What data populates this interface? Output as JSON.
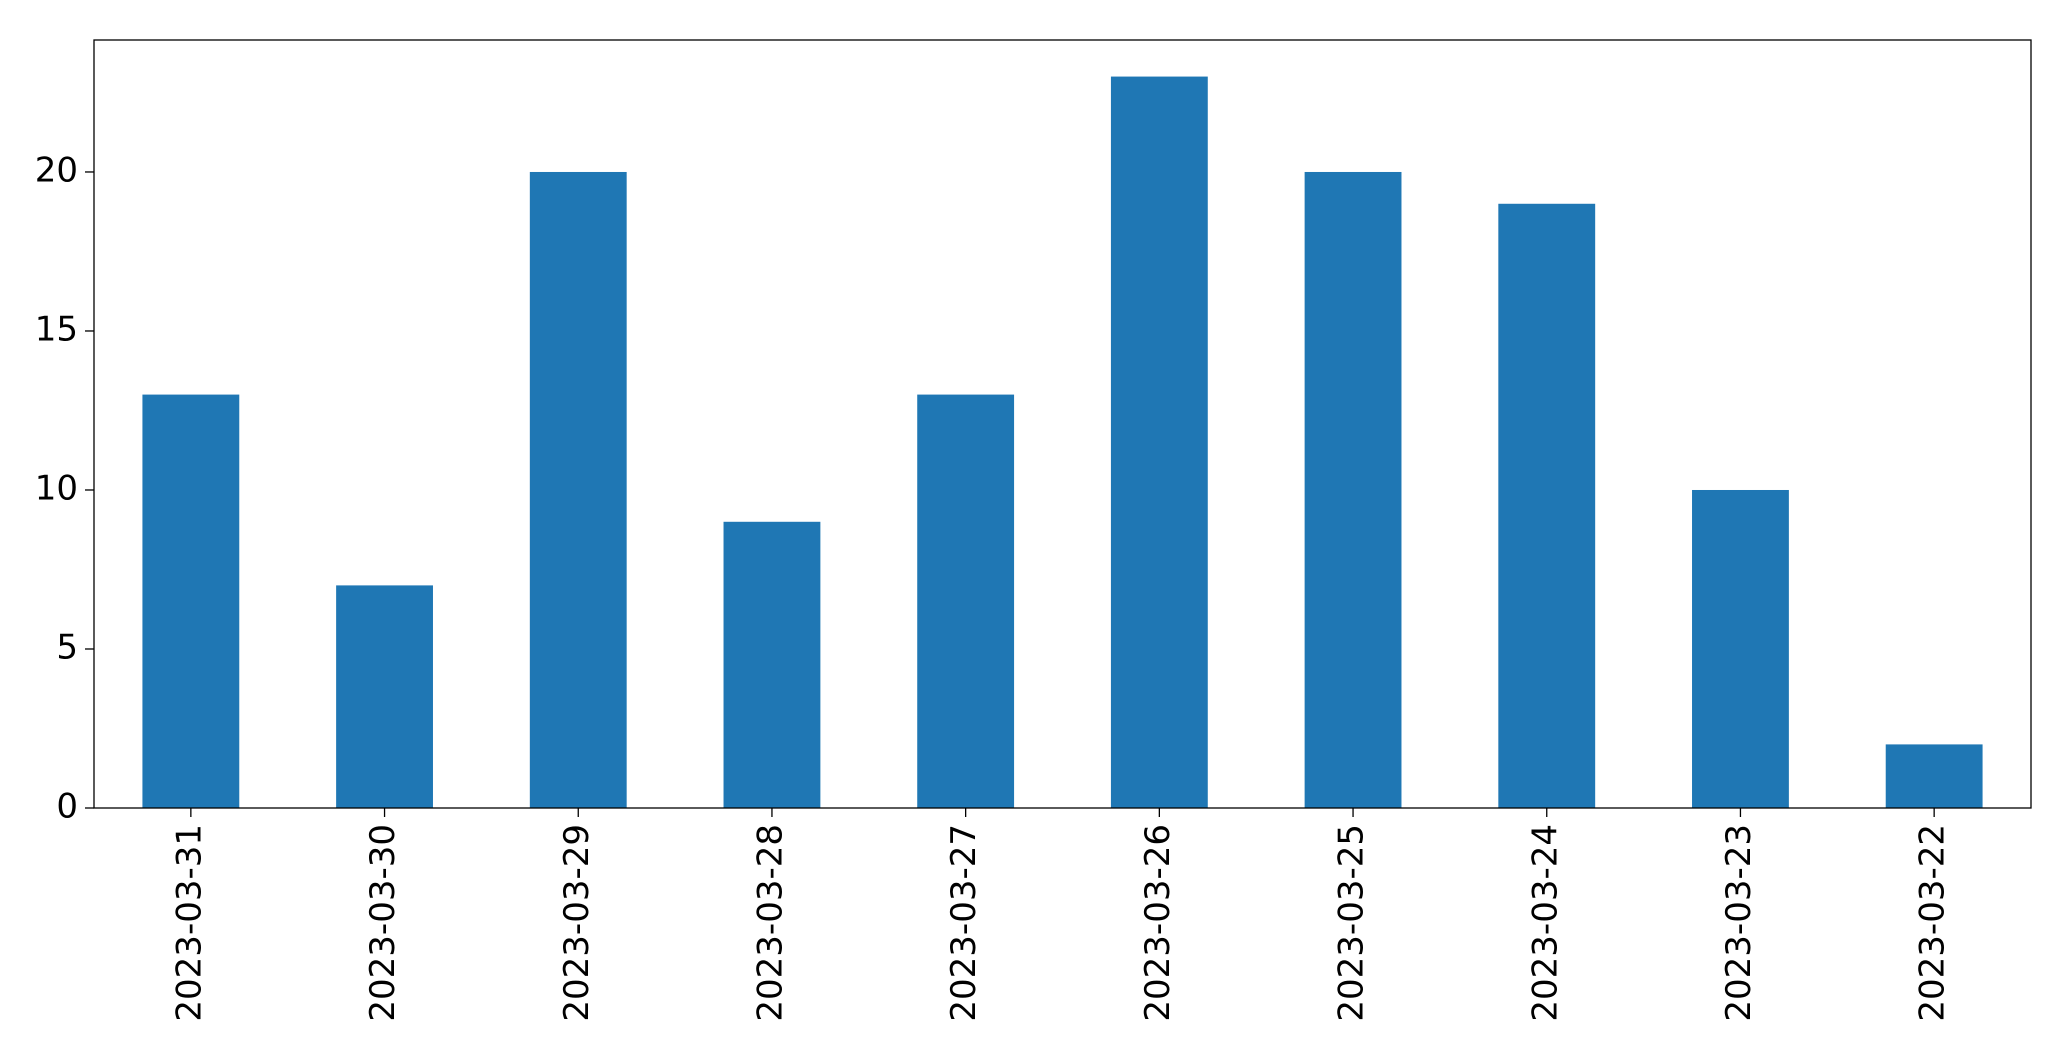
{
  "chart_data": {
    "type": "bar",
    "categories": [
      "2023-03-31",
      "2023-03-30",
      "2023-03-29",
      "2023-03-28",
      "2023-03-27",
      "2023-03-26",
      "2023-03-25",
      "2023-03-24",
      "2023-03-23",
      "2023-03-22"
    ],
    "values": [
      13,
      7,
      20,
      9,
      13,
      23,
      20,
      19,
      10,
      2
    ],
    "color": "#1f77b4",
    "ylim": [
      0,
      24.15
    ],
    "yticks": [
      0,
      5,
      10,
      15,
      20
    ],
    "grid": false
  }
}
